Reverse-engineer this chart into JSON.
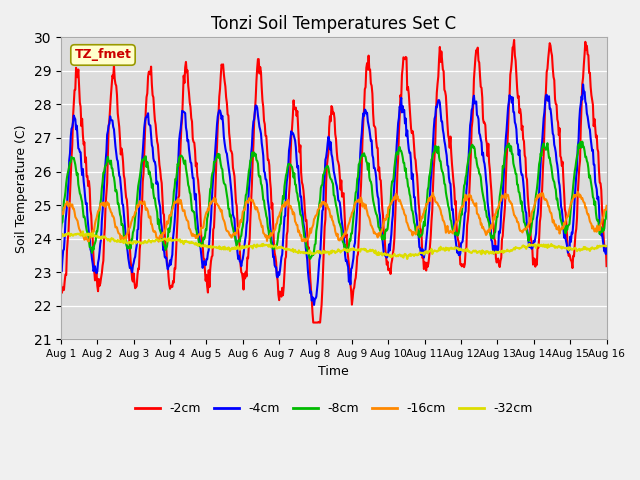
{
  "title": "Tonzi Soil Temperatures Set C",
  "xlabel": "Time",
  "ylabel": "Soil Temperature (C)",
  "ylim": [
    21.0,
    30.0
  ],
  "yticks": [
    21.0,
    22.0,
    23.0,
    24.0,
    25.0,
    26.0,
    27.0,
    28.0,
    29.0,
    30.0
  ],
  "xtick_labels": [
    "Aug 1",
    "Aug 2",
    "Aug 3",
    "Aug 4",
    "Aug 5",
    "Aug 6",
    "Aug 7",
    "Aug 8",
    "Aug 9",
    "Aug 10",
    "Aug 11",
    "Aug 12",
    "Aug 13",
    "Aug 14",
    "Aug 15",
    "Aug 16"
  ],
  "annotation": "TZ_fmet",
  "series_colors": [
    "#ff0000",
    "#0000ff",
    "#00bb00",
    "#ff8800",
    "#dddd00"
  ],
  "series_labels": [
    "-2cm",
    "-4cm",
    "-8cm",
    "-16cm",
    "-32cm"
  ],
  "series_lw": [
    1.5,
    1.5,
    1.5,
    1.5,
    1.5
  ],
  "n_points": 721,
  "days": 15,
  "fig_bg": "#f0f0f0",
  "ax_bg": "#dcdcdc"
}
